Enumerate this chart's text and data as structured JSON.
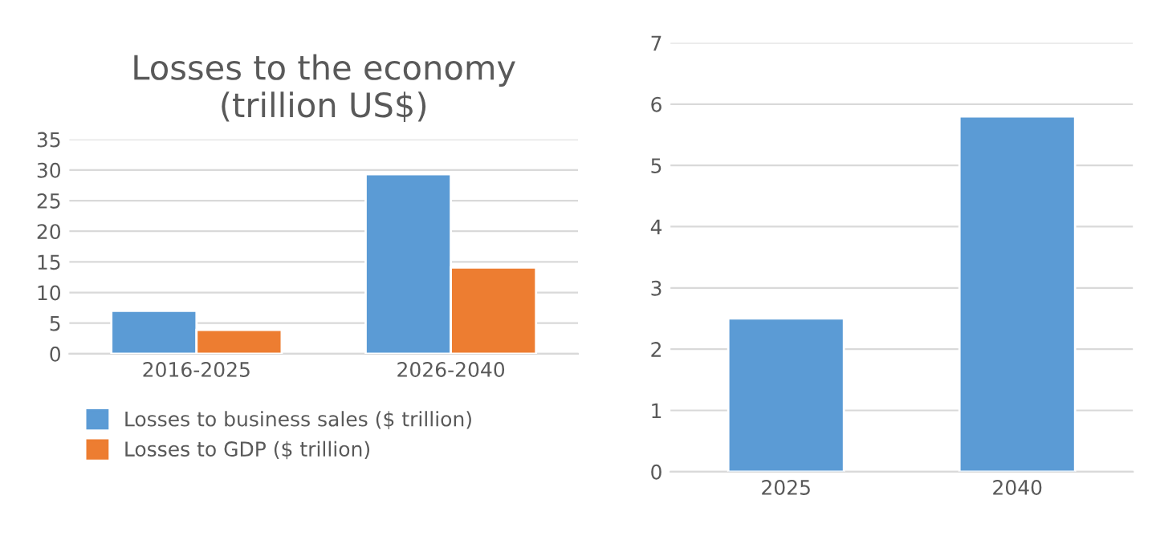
{
  "chart_data": [
    {
      "type": "bar",
      "title": "Losses to the economy\n(trillion US$)",
      "categories": [
        "2016-2025",
        "2026-2040"
      ],
      "series": [
        {
          "name": "Losses to business sales ($ trillion)",
          "color": "#5b9bd5",
          "values": [
            7.0,
            29.3
          ]
        },
        {
          "name": "Losses to GDP ($ trillion)",
          "color": "#ed7d31",
          "values": [
            3.9,
            14.1
          ]
        }
      ],
      "ylim": [
        0,
        35
      ],
      "yticks": [
        0,
        5,
        10,
        15,
        20,
        25,
        30,
        35
      ],
      "grid": "y",
      "legend": "bottom"
    },
    {
      "type": "bar",
      "categories": [
        "2025",
        "2040"
      ],
      "series": [
        {
          "color": "#5b9bd5",
          "values": [
            2.5,
            5.8
          ]
        }
      ],
      "ylim": [
        0,
        7
      ],
      "yticks": [
        0,
        1,
        2,
        3,
        4,
        5,
        6,
        7
      ],
      "grid": "y"
    }
  ]
}
